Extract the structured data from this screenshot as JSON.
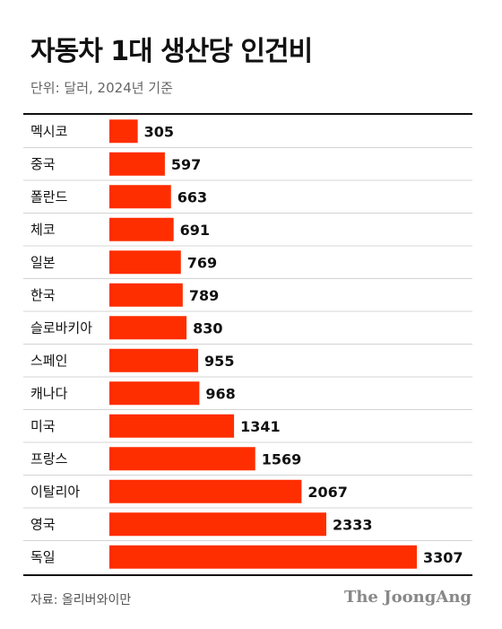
{
  "header": {
    "title": "자동차 1대 생산당 인건비",
    "subtitle": "단위: 달러, 2024년 기준"
  },
  "footer": {
    "source": "자료: 올리버와이만",
    "brand": "The JoongAng"
  },
  "colors": {
    "bar": "#ff2e00",
    "divider": "#d4d4d4",
    "rule": "#111111"
  },
  "chart_data": {
    "type": "bar",
    "orientation": "horizontal",
    "categories": [
      "멕시코",
      "중국",
      "폴란드",
      "체코",
      "일본",
      "한국",
      "슬로바키아",
      "스페인",
      "캐나다",
      "미국",
      "프랑스",
      "이탈리아",
      "영국",
      "독일"
    ],
    "values": [
      305,
      597,
      663,
      691,
      769,
      789,
      830,
      955,
      968,
      1341,
      1569,
      2067,
      2333,
      3307
    ],
    "value_labels": [
      "305",
      "597",
      "663",
      "691",
      "769",
      "789",
      "830",
      "955",
      "968",
      "1341",
      "1569",
      "2067",
      "2333",
      "3307"
    ],
    "xlim": [
      0,
      3307
    ],
    "grid": false,
    "legend": "none"
  }
}
